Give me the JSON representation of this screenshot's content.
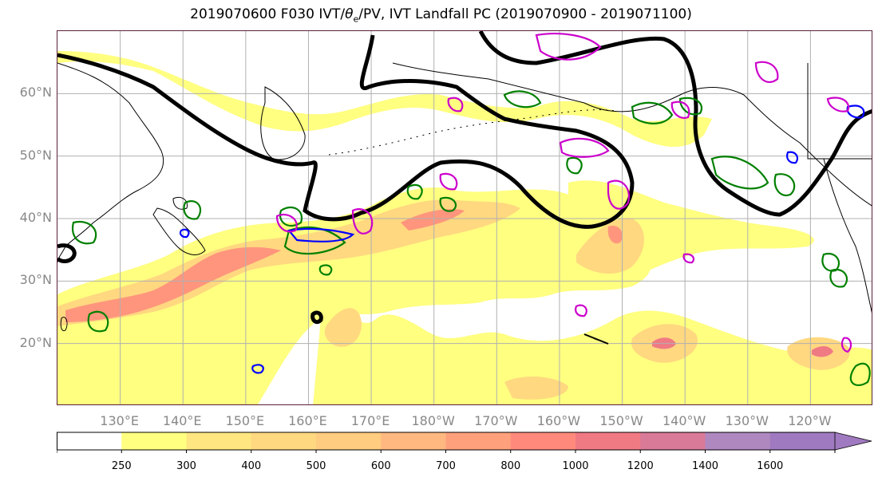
{
  "title": {
    "prefix": "2019070600 F030 IVT/",
    "theta_symbol": "θ",
    "theta_sub": "e",
    "suffix": "/PV, IVT Landfall PC (2019070900 - 2019071100)"
  },
  "map": {
    "lat_labels": [
      "60°N",
      "50°N",
      "40°N",
      "30°N",
      "20°N"
    ],
    "lon_labels": [
      "130°E",
      "140°E",
      "150°E",
      "160°E",
      "170°E",
      "180°W",
      "170°W",
      "160°W",
      "150°W",
      "140°W",
      "130°W",
      "120°W"
    ],
    "lat_values": [
      60,
      50,
      40,
      30,
      20
    ],
    "lon_values": [
      130,
      140,
      150,
      160,
      170,
      180,
      190,
      200,
      210,
      220,
      230,
      240
    ],
    "extent": {
      "lon_min": 120,
      "lon_max": 250,
      "lat_min": 10,
      "lat_max": 70
    },
    "gridlines": true
  },
  "colorbar": {
    "levels": [
      "250",
      "300",
      "400",
      "500",
      "600",
      "700",
      "800",
      "1000",
      "1200",
      "1400",
      "1600"
    ],
    "colors": [
      "#ffffff",
      "#ffff80",
      "#ffe680",
      "#ffd880",
      "#ffcc80",
      "#ffb880",
      "#ffa07c",
      "#ff8a7c",
      "#f07a84",
      "#d87a98",
      "#b088c0",
      "#a07ac0"
    ],
    "extend": "max"
  },
  "colors": {
    "theta_e_contour": "#008000",
    "pv_contour": "#0000ff",
    "landfall_pc": "#cc00cc",
    "dynamic_tropopause": "#000000",
    "coastline": "#000000",
    "grid": "#b0b0b0"
  }
}
